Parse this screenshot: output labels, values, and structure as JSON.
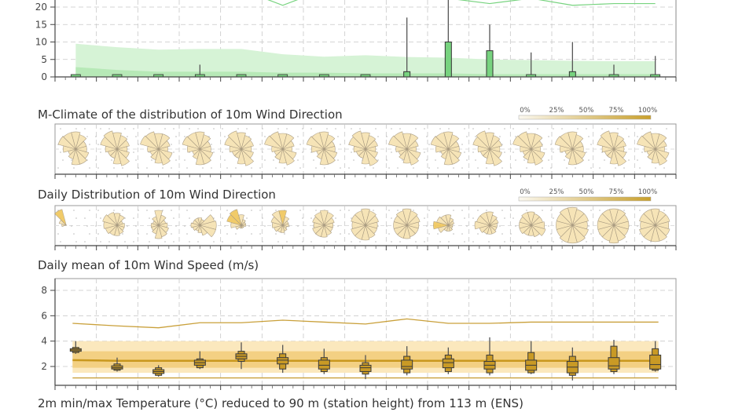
{
  "titles": {
    "mclimate": "M-Climate of the distribution of 10m Wind Direction",
    "daily_dir": "Daily Distribution of 10m Wind Direction",
    "wind_speed": "Daily mean of 10m Wind Speed (m/s)",
    "temperature": "2m min/max Temperature (°C) reduced to 90 m (station height) from 113 m (ENS)"
  },
  "legend": {
    "labels": [
      "0%",
      "25%",
      "50%",
      "75%",
      "100%"
    ],
    "gradient_from": "#fbf8ef",
    "gradient_to": "#c9a02c"
  },
  "colors": {
    "precip_green": "#77d37f",
    "precip_band_light": "#d6f3d6",
    "precip_band_dark": "#b7e9b7",
    "rose_fill": "#f6e3b4",
    "rose_fill_strong": "#efc350",
    "wind_band_light": "#fbe8bd",
    "wind_band_dark": "#f3d083",
    "wind_median": "#c9981e",
    "box_fill": "#c99a25"
  },
  "chart_data": [
    {
      "type": "bar",
      "title": "",
      "note": "Top panel (cropped): precipitation box plots with M-climate shaded bands",
      "yticks": [
        0,
        5,
        10,
        15,
        20
      ],
      "ylim": [
        0,
        22
      ],
      "grid": true,
      "days": 15,
      "series": [
        {
          "name": "box_top",
          "values": [
            0.3,
            0.2,
            0,
            0,
            0,
            0,
            0,
            0,
            1.5,
            10,
            7.5,
            0.2,
            1.5,
            0.5,
            0.2
          ]
        },
        {
          "name": "whisker_max",
          "values": [
            0.3,
            0.4,
            0,
            3.5,
            0,
            0,
            0.3,
            0,
            17,
            24,
            15,
            7,
            10,
            3.5,
            6
          ]
        },
        {
          "name": "mclimate_upper",
          "values": [
            9.5,
            8.5,
            7.8,
            8,
            8,
            6.5,
            5.8,
            6.2,
            5.7,
            5.5,
            5,
            4.8,
            4.6,
            4.5,
            4.5
          ]
        },
        {
          "name": "mclimate_lower",
          "values": [
            2.8,
            2,
            1.5,
            1.5,
            1.5,
            1.2,
            1.2,
            1,
            1,
            1,
            0.8,
            0.8,
            0.8,
            0.8,
            0.8
          ]
        },
        {
          "name": "mclimate_max_line",
          "values": [
            null,
            null,
            null,
            null,
            25,
            20.5,
            25,
            null,
            24,
            22.5,
            21,
            22.5,
            20.5,
            21,
            21
          ]
        }
      ]
    },
    {
      "type": "heatmap",
      "title": "M-Climate of the distribution of 10m Wind Direction",
      "days": 15,
      "sectors": 12,
      "note": "Wind roses per day, mostly uniform light fill, W/NW sectors slightly stronger"
    },
    {
      "type": "heatmap",
      "title": "Daily Distribution of 10m Wind Direction",
      "days": 15,
      "sectors": 12,
      "note": "Day 1 dominated by NW sector (strong), days 4-5 SE/NW, day 10 W sector strong"
    },
    {
      "type": "line",
      "title": "Daily mean of 10m Wind Speed (m/s)",
      "ylabel": "",
      "yticks": [
        2,
        4,
        6,
        8
      ],
      "ylim": [
        0.6,
        8.8
      ],
      "grid": true,
      "days": 15,
      "series": [
        {
          "name": "mclimate_max",
          "values": [
            5.4,
            5.2,
            5.05,
            5.45,
            5.45,
            5.65,
            5.5,
            5.35,
            5.75,
            5.4,
            5.4,
            5.5,
            5.5,
            5.5,
            5.5
          ]
        },
        {
          "name": "mclimate_min",
          "values": [
            1.1,
            1.1,
            1.1,
            1.1,
            1.1,
            1.1,
            1.1,
            1.1,
            1.1,
            1.1,
            1.1,
            1.1,
            1.1,
            1.1,
            1.1
          ]
        },
        {
          "name": "mclimate_band_outer_upper",
          "values": [
            4.0,
            4.0,
            4.0,
            4.0,
            4.0,
            4.0,
            4.0,
            4.0,
            4.0,
            4.0,
            4.0,
            4.0,
            4.0,
            4.0,
            4.0
          ]
        },
        {
          "name": "mclimate_band_inner_upper",
          "values": [
            3.2,
            3.2,
            3.2,
            3.2,
            3.2,
            3.2,
            3.2,
            3.2,
            3.2,
            3.2,
            3.2,
            3.2,
            3.2,
            3.2,
            3.2
          ]
        },
        {
          "name": "mclimate_median",
          "values": [
            2.5,
            2.45,
            2.45,
            2.45,
            2.45,
            2.45,
            2.45,
            2.45,
            2.45,
            2.45,
            2.45,
            2.45,
            2.45,
            2.45,
            2.45
          ]
        },
        {
          "name": "mclimate_band_inner_lower",
          "values": [
            1.9,
            1.9,
            1.9,
            1.9,
            1.9,
            1.9,
            1.9,
            1.9,
            1.9,
            1.9,
            1.9,
            1.9,
            1.9,
            1.9,
            1.9
          ]
        },
        {
          "name": "mclimate_band_outer_lower",
          "values": [
            1.5,
            1.5,
            1.5,
            1.5,
            1.5,
            1.5,
            1.5,
            1.5,
            1.5,
            1.5,
            1.5,
            1.5,
            1.5,
            1.5,
            1.5
          ]
        },
        {
          "name": "ens_min",
          "values": [
            3.0,
            1.6,
            1.2,
            1.8,
            1.8,
            1.5,
            1.4,
            1.0,
            1.3,
            1.4,
            1.3,
            1.4,
            0.9,
            1.4,
            1.6
          ]
        },
        {
          "name": "ens_p10",
          "values": [
            3.1,
            1.7,
            1.3,
            1.9,
            2.4,
            1.8,
            1.6,
            1.4,
            1.5,
            1.6,
            1.5,
            1.5,
            1.3,
            1.6,
            1.7
          ]
        },
        {
          "name": "ens_p25",
          "values": [
            3.2,
            1.8,
            1.45,
            2.1,
            2.6,
            2.2,
            1.8,
            1.6,
            1.8,
            1.9,
            1.8,
            1.7,
            1.5,
            1.8,
            1.8
          ]
        },
        {
          "name": "ens_median",
          "values": [
            3.3,
            1.9,
            1.6,
            2.3,
            2.8,
            2.5,
            2.1,
            1.9,
            2.0,
            2.3,
            2.1,
            2.1,
            1.95,
            2.05,
            2.15
          ]
        },
        {
          "name": "ens_p75",
          "values": [
            3.4,
            2.05,
            1.75,
            2.5,
            3.0,
            2.7,
            2.5,
            2.1,
            2.5,
            2.6,
            2.4,
            2.5,
            2.4,
            2.7,
            2.9
          ]
        },
        {
          "name": "ens_p90",
          "values": [
            3.5,
            2.2,
            1.9,
            2.6,
            3.2,
            3.0,
            2.7,
            2.3,
            2.8,
            2.9,
            2.9,
            3.1,
            2.8,
            3.6,
            3.4
          ]
        },
        {
          "name": "ens_max",
          "values": [
            4.0,
            2.7,
            2.1,
            3.2,
            3.9,
            3.7,
            3.4,
            2.9,
            3.6,
            3.5,
            4.3,
            4.0,
            3.5,
            4.1,
            4.0
          ]
        }
      ]
    }
  ]
}
